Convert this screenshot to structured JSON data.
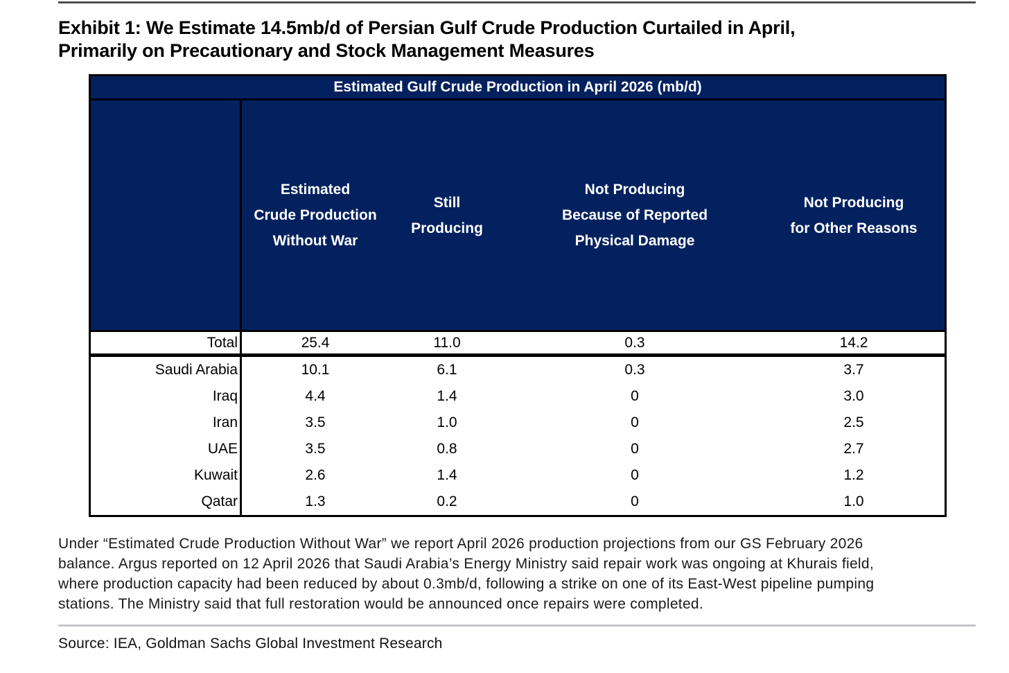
{
  "exhibit": {
    "title_line1": "Exhibit 1: We Estimate 14.5mb/d of Persian Gulf Crude Production Curtailed in April,",
    "title_line2": "Primarily on Precautionary and Stock Management Measures"
  },
  "table": {
    "title": "Estimated Gulf Crude Production in April 2026 (mb/d)",
    "columns": [
      {
        "label": "Estimated Crude Production Without War",
        "lines": [
          "Estimated",
          "Crude Production",
          "Without War"
        ]
      },
      {
        "label": "Still Producing",
        "lines": [
          "Still",
          "Producing"
        ]
      },
      {
        "label": "Not Producing Because of Reported Physical Damage",
        "lines": [
          "Not Producing",
          "Because of Reported",
          "Physical Damage"
        ]
      },
      {
        "label": "Not Producing for Other Reasons",
        "lines": [
          "Not Producing",
          "for Other Reasons"
        ]
      }
    ],
    "total_row": {
      "label": "Total",
      "values": [
        "25.4",
        "11.0",
        "0.3",
        "14.2"
      ]
    },
    "rows": [
      {
        "label": "Saudi Arabia",
        "values": [
          "10.1",
          "6.1",
          "0.3",
          "3.7"
        ]
      },
      {
        "label": "Iraq",
        "values": [
          "4.4",
          "1.4",
          "0",
          "3.0"
        ]
      },
      {
        "label": "Iran",
        "values": [
          "3.5",
          "1.0",
          "0",
          "2.5"
        ]
      },
      {
        "label": "UAE",
        "values": [
          "3.5",
          "0.8",
          "0",
          "2.7"
        ]
      },
      {
        "label": "Kuwait",
        "values": [
          "2.6",
          "1.4",
          "0",
          "1.2"
        ]
      },
      {
        "label": "Qatar",
        "values": [
          "1.3",
          "0.2",
          "0",
          "1.0"
        ]
      }
    ]
  },
  "footnote": {
    "lines": [
      "Under “Estimated Crude Production Without War” we report April 2026 production projections from our GS February 2026",
      "balance. Argus reported on 12 April 2026 that Saudi Arabia’s Energy Ministry said repair work was ongoing at Khurais field,",
      "where production capacity had been reduced by about 0.3mb/d, following a strike on one of its East-West pipeline pumping",
      "stations. The Ministry said that full restoration would be announced once repairs were completed."
    ]
  },
  "source": "Source: IEA, Goldman Sachs Global Investment Research",
  "colors": {
    "table_header_navy": "#03215F",
    "border_black": "#000000",
    "top_rule_gray": "#4D4E50",
    "source_rule_gray": "#C4C6C8",
    "text_black": "#1A1A1A"
  }
}
